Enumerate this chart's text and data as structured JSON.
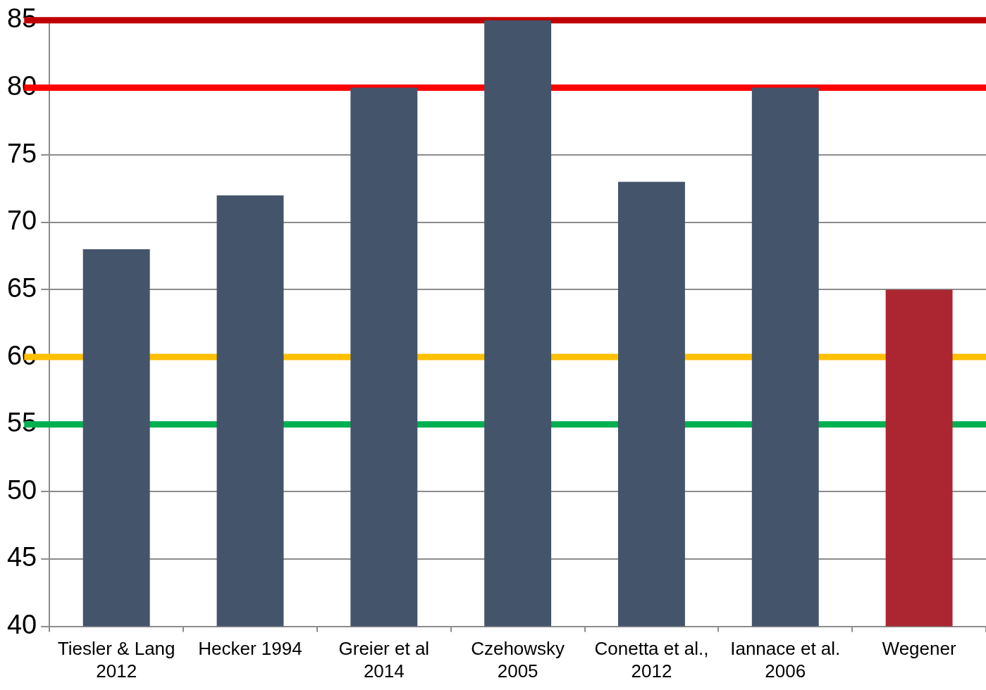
{
  "chart_data": {
    "type": "bar",
    "categories": [
      "Tiesler & Lang 2012",
      "Hecker 1994",
      "Greier et al 2014",
      "Czehowsky 2005",
      "Conetta et al., 2012",
      "Iannace et al. 2006",
      "Wegener"
    ],
    "values": [
      68,
      72,
      80,
      85,
      73,
      80,
      65
    ],
    "colors": [
      "#44546a",
      "#44546a",
      "#44546a",
      "#44546a",
      "#44546a",
      "#44546a",
      "#ab2631"
    ],
    "ylim": [
      40,
      85
    ],
    "yticks": [
      40,
      45,
      50,
      55,
      60,
      65,
      70,
      75,
      80,
      85
    ],
    "grid": "y",
    "ref_lines": [
      {
        "axis": "y",
        "value": 85,
        "color": "#c00000"
      },
      {
        "axis": "y",
        "value": 80,
        "color": "#ff0000"
      },
      {
        "axis": "y",
        "value": 60,
        "color": "#ffc000"
      },
      {
        "axis": "y",
        "value": 55,
        "color": "#00b050"
      }
    ]
  }
}
